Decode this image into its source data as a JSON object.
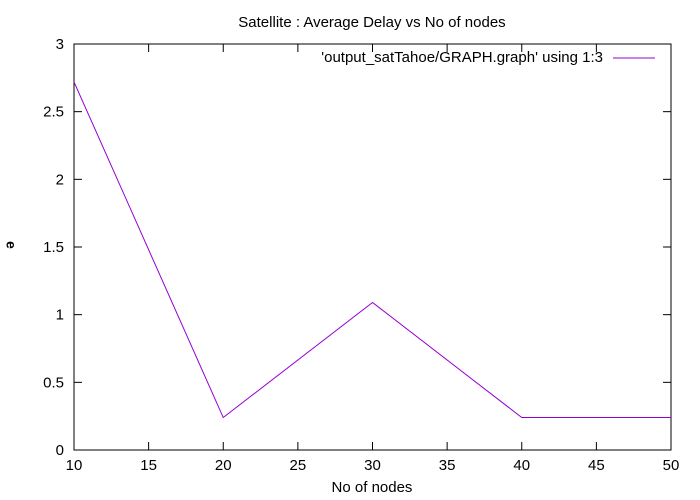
{
  "chart_data": {
    "type": "line",
    "title": "Satellite : Average Delay vs No of nodes",
    "xlabel": "No of nodes",
    "ylabel": "ǝ",
    "xlim": [
      10,
      50
    ],
    "ylim": [
      0,
      3
    ],
    "x_ticks": [
      "10",
      "15",
      "20",
      "25",
      "30",
      "35",
      "40",
      "45",
      "50"
    ],
    "y_ticks": [
      "0",
      "0.5",
      "1",
      "1.5",
      "2",
      "2.5",
      "3"
    ],
    "grid": false,
    "legend_position": "top-right",
    "series": [
      {
        "name": "'output_satTahoe/GRAPH.graph' using 1:3",
        "color": "#9400d3",
        "x": [
          10,
          20,
          30,
          40,
          50
        ],
        "y": [
          2.72,
          0.24,
          1.09,
          0.24,
          0.24
        ]
      }
    ]
  }
}
